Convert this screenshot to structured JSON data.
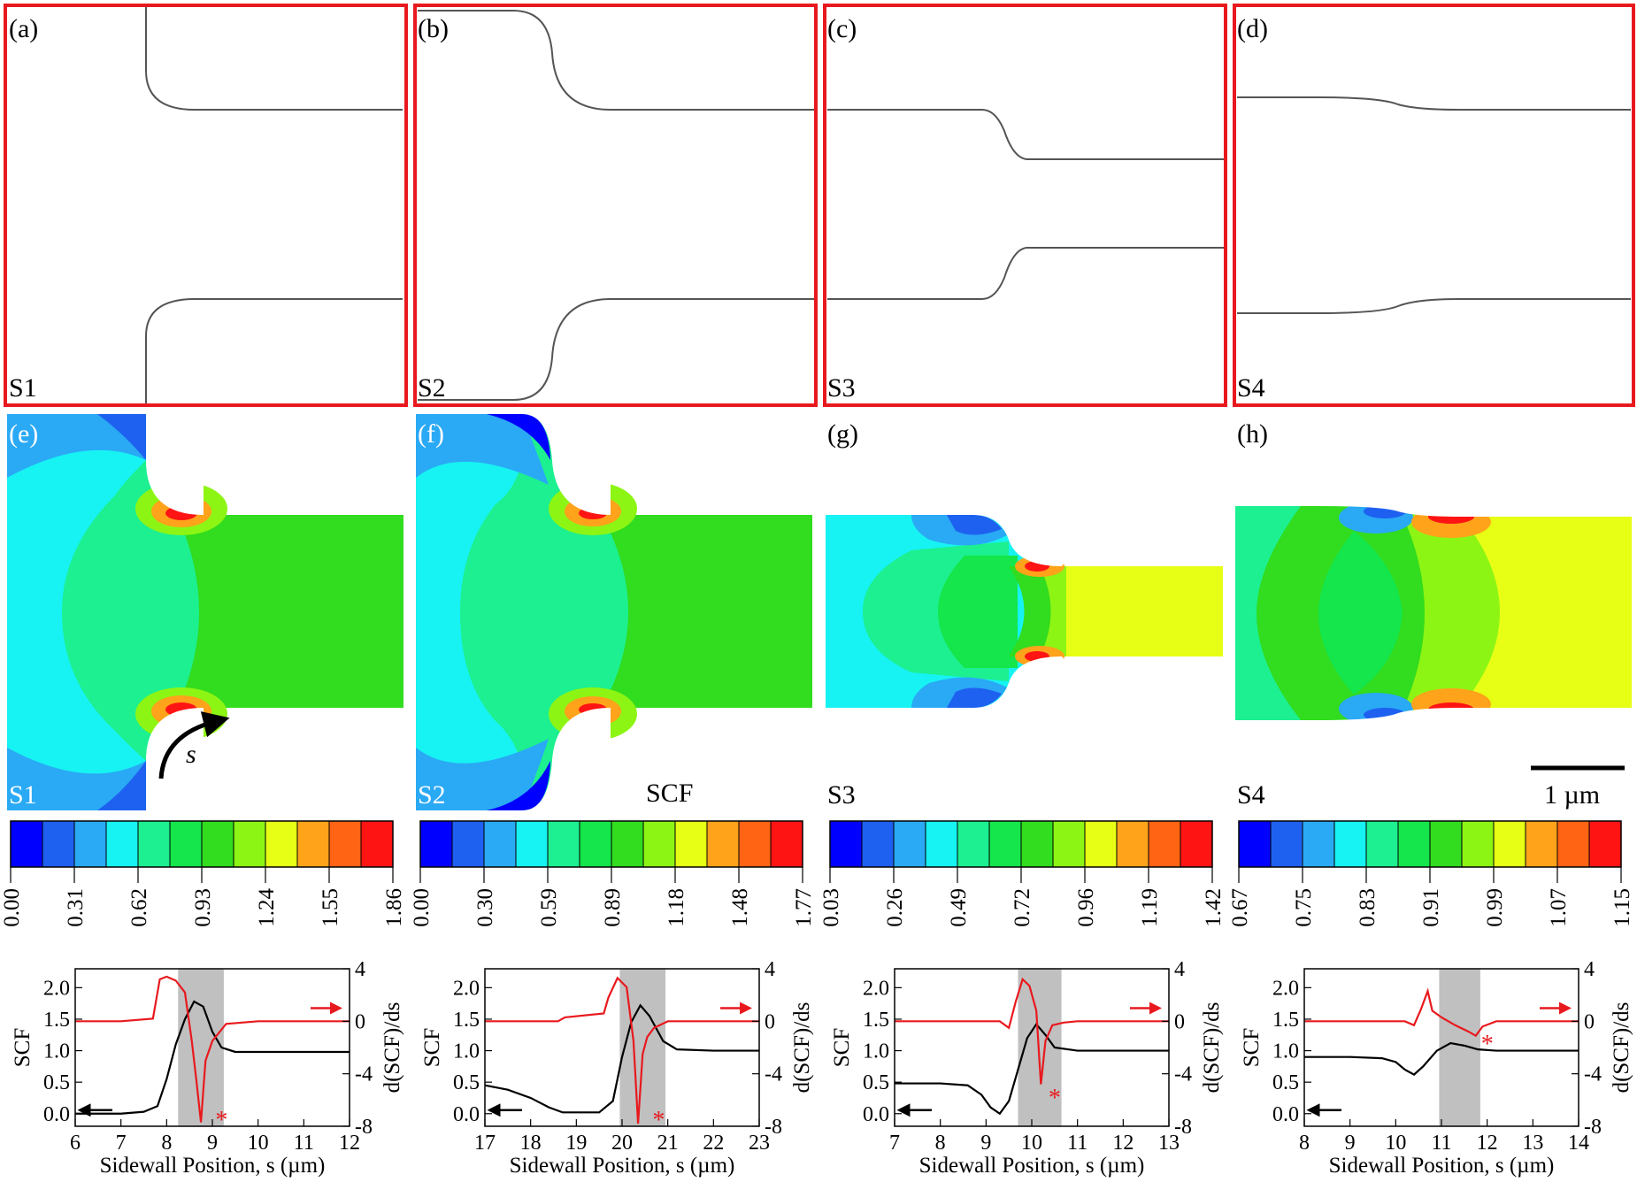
{
  "panel_labels": [
    "(a)",
    "(b)",
    "(c)",
    "(d)",
    "(e)",
    "(f)",
    "(g)",
    "(h)"
  ],
  "structures": [
    "S1",
    "S2",
    "S3",
    "S4"
  ],
  "colorbar_title": "SCF",
  "scale_bar_label": "1 µm",
  "arc_label": "s",
  "colors": {
    "frame": "#e8191e",
    "scf_curve": "#000000",
    "dscf_curve": "#e8191e",
    "shade": "#c0c0c0",
    "colormap": [
      "#0000ff",
      "#1e61f0",
      "#2aa9f5",
      "#17f2f2",
      "#1cf090",
      "#14e64b",
      "#32dc1e",
      "#8df514",
      "#e6ff14",
      "#ffa31a",
      "#ff6414",
      "#ff1414"
    ]
  },
  "colorbars": [
    {
      "ticks": [
        "0.00",
        "0.31",
        "0.62",
        "0.93",
        "1.24",
        "1.55",
        "1.86"
      ]
    },
    {
      "ticks": [
        "0.00",
        "0.30",
        "0.59",
        "0.89",
        "1.18",
        "1.48",
        "1.77"
      ]
    },
    {
      "ticks": [
        "0.03",
        "0.26",
        "0.49",
        "0.72",
        "0.96",
        "1.19",
        "1.42"
      ]
    },
    {
      "ticks": [
        "0.67",
        "0.75",
        "0.83",
        "0.91",
        "0.99",
        "1.07",
        "1.15"
      ]
    }
  ],
  "chart_data": [
    {
      "type": "line",
      "xlabel": "Sidewall Position, s (µm)",
      "ylabel": "SCF",
      "y2label": "d(SCF)/ds",
      "xlim": [
        6,
        12
      ],
      "ylim": [
        -0.2,
        2.3
      ],
      "y2lim": [
        -8,
        4
      ],
      "xticks": [
        "6",
        "7",
        "8",
        "9",
        "10",
        "11",
        "12"
      ],
      "yticks": [
        "0.0",
        "0.5",
        "1.0",
        "1.5",
        "2.0"
      ],
      "y2ticks": [
        "-8",
        "-4",
        "0",
        "4"
      ],
      "shade": [
        8.25,
        9.25
      ],
      "series": [
        {
          "axis": "left",
          "x": [
            6,
            7,
            7.5,
            7.8,
            8.0,
            8.2,
            8.4,
            8.6,
            8.8,
            9.0,
            9.2,
            9.5,
            10,
            11,
            12
          ],
          "y": [
            0.0,
            0.0,
            0.03,
            0.12,
            0.55,
            1.1,
            1.5,
            1.78,
            1.7,
            1.3,
            1.05,
            0.98,
            0.98,
            0.98,
            0.98
          ]
        },
        {
          "axis": "right",
          "x": [
            6,
            7,
            7.7,
            7.85,
            8.0,
            8.2,
            8.4,
            8.55,
            8.65,
            8.75,
            8.85,
            9.0,
            9.3,
            10,
            11,
            12
          ],
          "y": [
            0,
            0,
            0.2,
            3.2,
            3.4,
            3.1,
            2.2,
            -1.5,
            -4.5,
            -7.7,
            -3.0,
            -1.5,
            -0.2,
            0,
            0,
            0
          ]
        }
      ],
      "marker": {
        "x": 8.95,
        "y2": -7.6,
        "label": "*"
      }
    },
    {
      "type": "line",
      "xlabel": "Sidewall Position, s (µm)",
      "ylabel": "SCF",
      "y2label": "d(SCF)/ds",
      "xlim": [
        17,
        23
      ],
      "ylim": [
        -0.2,
        2.3
      ],
      "y2lim": [
        -8,
        4
      ],
      "xticks": [
        "17",
        "18",
        "19",
        "20",
        "21",
        "22",
        "23"
      ],
      "yticks": [
        "0.0",
        "0.5",
        "1.0",
        "1.5",
        "2.0"
      ],
      "y2ticks": [
        "-8",
        "-4",
        "0",
        "4"
      ],
      "shade": [
        19.95,
        20.95
      ],
      "series": [
        {
          "axis": "left",
          "x": [
            17,
            17.5,
            18,
            18.4,
            18.7,
            19.0,
            19.5,
            19.8,
            20.0,
            20.2,
            20.4,
            20.6,
            20.9,
            21.2,
            22,
            23
          ],
          "y": [
            0.45,
            0.38,
            0.25,
            0.1,
            0.02,
            0.02,
            0.02,
            0.2,
            0.9,
            1.45,
            1.72,
            1.55,
            1.15,
            1.02,
            1.0,
            1.0
          ]
        },
        {
          "axis": "right",
          "x": [
            17,
            18.6,
            18.75,
            19.6,
            19.7,
            19.9,
            20.1,
            20.25,
            20.35,
            20.45,
            20.55,
            20.7,
            21,
            22,
            23
          ],
          "y": [
            0,
            0,
            0.3,
            0.6,
            1.8,
            3.3,
            2.6,
            -1.5,
            -7.8,
            -2.5,
            -1.2,
            -0.5,
            0,
            0,
            0
          ]
        }
      ],
      "marker": {
        "x": 20.55,
        "y2": -7.6,
        "label": "*"
      }
    },
    {
      "type": "line",
      "xlabel": "Sidewall Position, s (µm)",
      "ylabel": "SCF",
      "y2label": "d(SCF)/ds",
      "xlim": [
        7,
        13
      ],
      "ylim": [
        -0.2,
        2.3
      ],
      "y2lim": [
        -8,
        4
      ],
      "xticks": [
        "7",
        "8",
        "9",
        "10",
        "11",
        "12",
        "13"
      ],
      "yticks": [
        "0.0",
        "0.5",
        "1.0",
        "1.5",
        "2.0"
      ],
      "y2ticks": [
        "-8",
        "-4",
        "0",
        "4"
      ],
      "shade": [
        9.7,
        10.65
      ],
      "series": [
        {
          "axis": "left",
          "x": [
            7,
            8,
            8.6,
            8.9,
            9.1,
            9.3,
            9.5,
            9.7,
            9.9,
            10.1,
            10.3,
            10.5,
            11,
            12,
            13
          ],
          "y": [
            0.48,
            0.48,
            0.45,
            0.3,
            0.1,
            0.0,
            0.2,
            0.7,
            1.2,
            1.42,
            1.25,
            1.05,
            1.0,
            1.0,
            1.0
          ]
        },
        {
          "axis": "right",
          "x": [
            7,
            9.3,
            9.5,
            9.65,
            9.8,
            9.95,
            10.1,
            10.2,
            10.3,
            10.45,
            10.7,
            11,
            12,
            13
          ],
          "y": [
            0,
            0,
            -0.5,
            1.5,
            3.2,
            2.7,
            0.8,
            -4.8,
            -1.5,
            -0.3,
            -0.1,
            0,
            0,
            0
          ]
        }
      ],
      "marker": {
        "x": 10.25,
        "y2": -5.9,
        "label": "*"
      }
    },
    {
      "type": "line",
      "xlabel": "Sidewall Position, s (µm)",
      "ylabel": "SCF",
      "y2label": "d(SCF)/ds",
      "xlim": [
        8,
        14
      ],
      "ylim": [
        -0.2,
        2.3
      ],
      "y2lim": [
        -8,
        4
      ],
      "xticks": [
        "8",
        "9",
        "10",
        "11",
        "12",
        "13",
        "14"
      ],
      "yticks": [
        "0.0",
        "0.5",
        "1.0",
        "1.5",
        "2.0"
      ],
      "y2ticks": [
        "-8",
        "-4",
        "0",
        "4"
      ],
      "shade": [
        10.95,
        11.85
      ],
      "series": [
        {
          "axis": "left",
          "x": [
            8,
            9,
            9.7,
            10.0,
            10.2,
            10.4,
            10.6,
            10.9,
            11.2,
            11.5,
            11.8,
            12.2,
            13,
            14
          ],
          "y": [
            0.9,
            0.9,
            0.88,
            0.82,
            0.7,
            0.62,
            0.75,
            1.0,
            1.12,
            1.08,
            1.02,
            1.0,
            1.0,
            1.0
          ]
        },
        {
          "axis": "right",
          "x": [
            8,
            10.2,
            10.4,
            10.55,
            10.7,
            10.8,
            11.0,
            11.3,
            11.6,
            11.75,
            11.9,
            12.2,
            13,
            14
          ],
          "y": [
            0,
            0,
            -0.3,
            0.9,
            2.3,
            0.8,
            0.3,
            -0.3,
            -0.8,
            -1.1,
            -0.4,
            0,
            0,
            0
          ]
        }
      ],
      "marker": {
        "x": 11.75,
        "y2": -1.8,
        "label": "*"
      }
    }
  ]
}
